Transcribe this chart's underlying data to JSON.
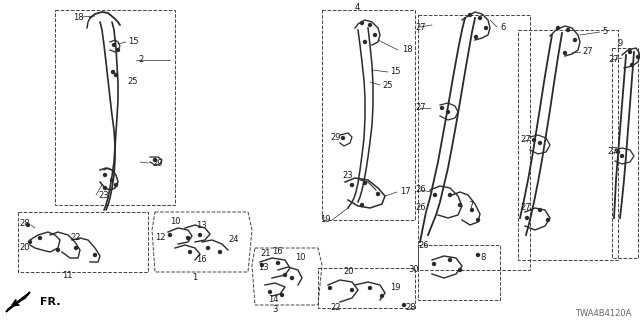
{
  "bg_color": "#ffffff",
  "diagram_id": "TWA4B4120A",
  "fig_width": 6.4,
  "fig_height": 3.2,
  "dpi": 100,
  "font_size": 7.0,
  "small_font": 6.0,
  "line_color": "#2a2a2a",
  "text_color": "#1a1a1a",
  "box_color": "#444444",
  "note_color": "#888888",
  "fr_arrow_color": "#111111"
}
